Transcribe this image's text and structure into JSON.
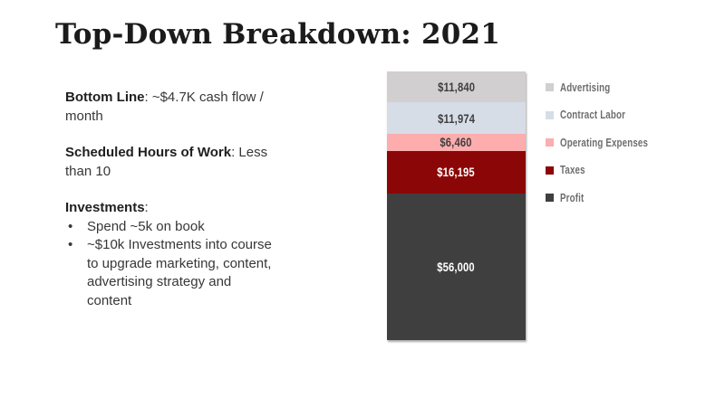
{
  "slide": {
    "title": "Top-Down Breakdown: 2021",
    "background_color": "#ffffff"
  },
  "notes": {
    "paragraphs": [
      {
        "bold": "Bottom Line",
        "rest": ": ~$4.7K cash flow /\nmonth"
      },
      {
        "bold": "Scheduled Hours of Work",
        "rest": ": Less\nthan 10"
      },
      {
        "bold": "Investments",
        "rest": ":"
      }
    ],
    "bullets": [
      "Spend ~5k on book",
      "~$10k Investments into course\nto upgrade marketing, content,\nadvertising strategy and\ncontent"
    ]
  },
  "chart_data": {
    "type": "bar",
    "variant": "stacked-single-column",
    "title": "",
    "categories": [
      "2021"
    ],
    "total": 102469,
    "axes_visible": false,
    "grid": false,
    "legend_position": "right",
    "legend_text_color": "#6e6e6e",
    "series": [
      {
        "name": "Advertising",
        "value": 11840,
        "label": "$11,840",
        "color": "#d1cfd0",
        "label_color": "#3f3f3f"
      },
      {
        "name": "Contract Labor",
        "value": 11974,
        "label": "$11,974",
        "color": "#d7dde7",
        "label_color": "#3f3f3f"
      },
      {
        "name": "Operating Expenses",
        "value": 6460,
        "label": "$6,460",
        "color": "#fdadad",
        "label_color": "#3f3f3f"
      },
      {
        "name": "Taxes",
        "value": 16195,
        "label": "$16,195",
        "color": "#8b0606",
        "label_color": "#ffffff"
      },
      {
        "name": "Profit",
        "value": 56000,
        "label": "$56,000",
        "color": "#3f3f3f",
        "label_color": "#ffffff"
      }
    ]
  }
}
